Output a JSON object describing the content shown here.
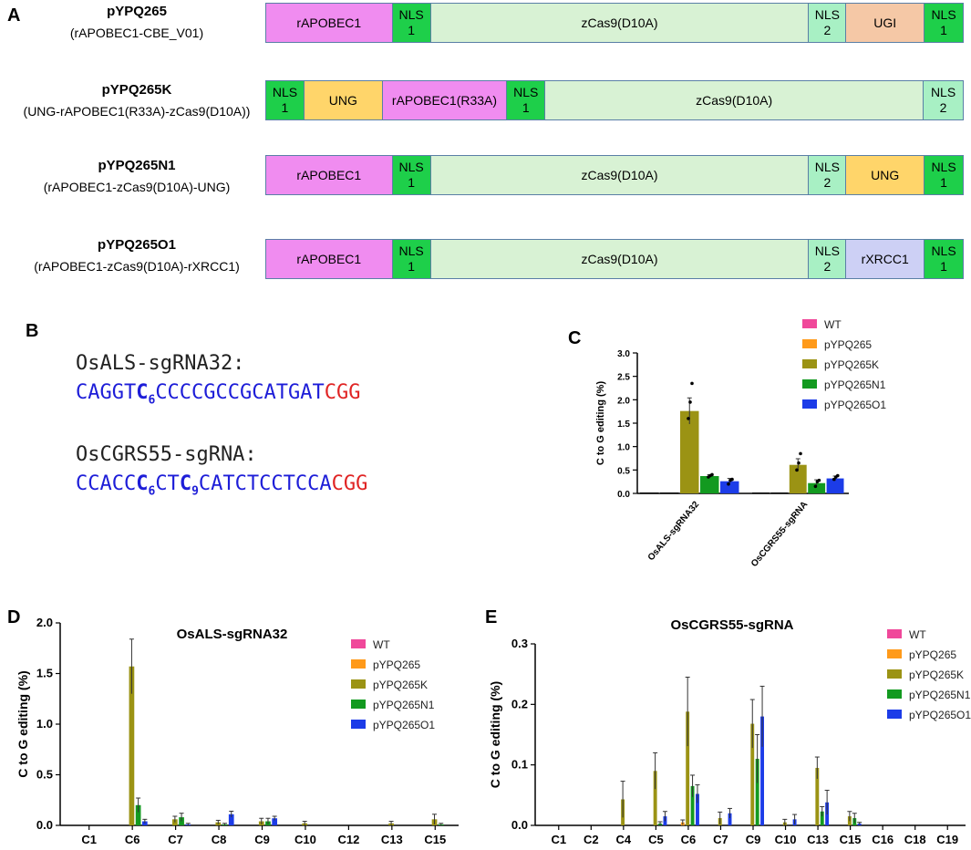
{
  "panels": {
    "a": "A",
    "b": "B",
    "c": "C",
    "d": "D",
    "e": "E"
  },
  "constructs": [
    {
      "name": "pYPQ265",
      "subtitle": "(rAPOBEC1-CBE_V01)",
      "segments": [
        {
          "label": "rAPOBEC1",
          "color": "#f08cf0"
        },
        {
          "label": "NLS\n1",
          "color": "#1ecf4a"
        },
        {
          "label": "zCas9(D10A)",
          "color": "#d8f2d4"
        },
        {
          "label": "NLS\n2",
          "color": "#a8f0c4"
        },
        {
          "label": "UGI",
          "color": "#f5c8a6"
        },
        {
          "label": "NLS\n1",
          "color": "#1ecf4a"
        }
      ]
    },
    {
      "name": "pYPQ265K",
      "subtitle": "(UNG-rAPOBEC1(R33A)-zCas9(D10A))",
      "segments": [
        {
          "label": "NLS\n1",
          "color": "#1ecf4a"
        },
        {
          "label": "UNG",
          "color": "#ffd56a"
        },
        {
          "label": "rAPOBEC1(R33A)",
          "color": "#f08cf0"
        },
        {
          "label": "NLS\n1",
          "color": "#1ecf4a"
        },
        {
          "label": "zCas9(D10A)",
          "color": "#d8f2d4"
        },
        {
          "label": "NLS\n2",
          "color": "#a8f0c4"
        }
      ]
    },
    {
      "name": "pYPQ265N1",
      "subtitle": "(rAPOBEC1-zCas9(D10A)-UNG)",
      "segments": [
        {
          "label": "rAPOBEC1",
          "color": "#f08cf0"
        },
        {
          "label": "NLS\n1",
          "color": "#1ecf4a"
        },
        {
          "label": "zCas9(D10A)",
          "color": "#d8f2d4"
        },
        {
          "label": "NLS\n2",
          "color": "#a8f0c4"
        },
        {
          "label": "UNG",
          "color": "#ffd56a"
        },
        {
          "label": "NLS\n1",
          "color": "#1ecf4a"
        }
      ]
    },
    {
      "name": "pYPQ265O1",
      "subtitle": "(rAPOBEC1-zCas9(D10A)-rXRCC1)",
      "segments": [
        {
          "label": "rAPOBEC1",
          "color": "#f08cf0"
        },
        {
          "label": "NLS\n1",
          "color": "#1ecf4a"
        },
        {
          "label": "zCas9(D10A)",
          "color": "#d8f2d4"
        },
        {
          "label": "NLS\n2",
          "color": "#a8f0c4"
        },
        {
          "label": "rXRCC1",
          "color": "#cdd0f5"
        },
        {
          "label": "NLS\n1",
          "color": "#1ecf4a"
        }
      ]
    }
  ],
  "sequences": [
    {
      "title": "OsALS-sgRNA32:",
      "parts": [
        {
          "text": "CAGGT",
          "style": "blue"
        },
        {
          "text": "C",
          "sub": "6",
          "style": "blue-bold"
        },
        {
          "text": "CCCCGCCGCATGAT",
          "style": "blue"
        },
        {
          "text": "CGG",
          "style": "red"
        }
      ]
    },
    {
      "title": "OsCGRS55-sgRNA:",
      "parts": [
        {
          "text": "CCACC",
          "style": "blue"
        },
        {
          "text": "C",
          "sub": "6",
          "style": "blue-bold"
        },
        {
          "text": "CT",
          "style": "blue"
        },
        {
          "text": "C",
          "sub": "9",
          "style": "blue-bold"
        },
        {
          "text": "CATCTCCTCCA",
          "style": "blue"
        },
        {
          "text": "CGG",
          "style": "red"
        }
      ]
    }
  ],
  "series_colors": {
    "WT": "#f0489a",
    "pYPQ265": "#ff9a1a",
    "pYPQ265K": "#9b9314",
    "pYPQ265N1": "#139a20",
    "pYPQ265O1": "#1c3ce8"
  },
  "chart_data": [
    {
      "id": "C",
      "type": "bar",
      "title": "",
      "ylabel": "C to G editing (%)",
      "ylim": [
        0,
        3.0
      ],
      "yticks": [
        0.0,
        0.5,
        1.0,
        1.5,
        2.0,
        2.5,
        3.0
      ],
      "ytick_labels": [
        "0.0",
        "0.5",
        "1.0",
        "1.5",
        "2.0",
        "2.5",
        "3.0"
      ],
      "categories": [
        "OsALS-sgRNA32",
        "OsCGRS55-sgRNA"
      ],
      "legend_position": "top-right",
      "series": [
        {
          "name": "WT",
          "values": [
            0,
            0
          ],
          "errors": [
            0,
            0
          ]
        },
        {
          "name": "pYPQ265",
          "values": [
            0,
            0
          ],
          "errors": [
            0,
            0
          ]
        },
        {
          "name": "pYPQ265K",
          "values": [
            1.76,
            0.61
          ],
          "errors": [
            0.28,
            0.13
          ]
        },
        {
          "name": "pYPQ265N1",
          "values": [
            0.37,
            0.22
          ],
          "errors": [
            0.03,
            0.07
          ]
        },
        {
          "name": "pYPQ265O1",
          "values": [
            0.26,
            0.32
          ],
          "errors": [
            0.06,
            0.05
          ]
        }
      ]
    },
    {
      "id": "D",
      "type": "bar",
      "title": "OsALS-sgRNA32",
      "ylabel": "C to G editing (%)",
      "ylim": [
        0,
        2.0
      ],
      "yticks": [
        0.0,
        0.5,
        1.0,
        1.5,
        2.0
      ],
      "ytick_labels": [
        "0.0",
        "0.5",
        "1.0",
        "1.5",
        "2.0"
      ],
      "categories": [
        "C1",
        "C6",
        "C7",
        "C8",
        "C9",
        "C10",
        "C12",
        "C13",
        "C15"
      ],
      "legend_position": "top-right",
      "series": [
        {
          "name": "WT",
          "values": [
            0,
            0,
            0,
            0,
            0,
            0,
            0,
            0,
            0
          ],
          "errors": [
            0,
            0,
            0,
            0,
            0,
            0,
            0,
            0,
            0
          ]
        },
        {
          "name": "pYPQ265",
          "values": [
            0,
            0,
            0,
            0,
            0,
            0,
            0,
            0,
            0
          ],
          "errors": [
            0,
            0,
            0,
            0,
            0,
            0,
            0,
            0,
            0
          ]
        },
        {
          "name": "pYPQ265K",
          "values": [
            0,
            1.57,
            0.06,
            0.03,
            0.04,
            0.02,
            0,
            0.02,
            0.06
          ],
          "errors": [
            0,
            0.27,
            0.03,
            0.02,
            0.03,
            0.02,
            0,
            0.02,
            0.05
          ]
        },
        {
          "name": "pYPQ265N1",
          "values": [
            0,
            0.2,
            0.08,
            0.01,
            0.04,
            0,
            0,
            0,
            0.01
          ],
          "errors": [
            0,
            0.07,
            0.04,
            0.01,
            0.03,
            0,
            0,
            0,
            0.01
          ]
        },
        {
          "name": "pYPQ265O1",
          "values": [
            0,
            0.04,
            0.01,
            0.11,
            0.07,
            0,
            0,
            0,
            0
          ],
          "errors": [
            0,
            0.02,
            0.01,
            0.03,
            0.02,
            0,
            0,
            0,
            0
          ]
        }
      ]
    },
    {
      "id": "E",
      "type": "bar",
      "title": "OsCGRS55-sgRNA",
      "ylabel": "C to G editing (%)",
      "ylim": [
        0,
        0.3
      ],
      "yticks": [
        0.0,
        0.1,
        0.2,
        0.3
      ],
      "ytick_labels": [
        "0.0",
        "0.1",
        "0.2",
        "0.3"
      ],
      "categories": [
        "C1",
        "C2",
        "C4",
        "C5",
        "C6",
        "C7",
        "C9",
        "C10",
        "C13",
        "C15",
        "C16",
        "C18",
        "C19"
      ],
      "legend_position": "top-right",
      "series": [
        {
          "name": "WT",
          "values": [
            0,
            0,
            0,
            0,
            0,
            0,
            0,
            0,
            0,
            0,
            0,
            0,
            0
          ],
          "errors": [
            0,
            0,
            0,
            0,
            0,
            0,
            0,
            0,
            0,
            0,
            0,
            0,
            0
          ]
        },
        {
          "name": "pYPQ265",
          "values": [
            0,
            0,
            0,
            0,
            0.005,
            0,
            0,
            0,
            0,
            0,
            0,
            0,
            0
          ],
          "errors": [
            0,
            0,
            0,
            0,
            0.004,
            0,
            0,
            0,
            0,
            0,
            0,
            0,
            0
          ]
        },
        {
          "name": "pYPQ265K",
          "values": [
            0,
            0,
            0.043,
            0.09,
            0.188,
            0.012,
            0.168,
            0.005,
            0.095,
            0.015,
            0,
            0,
            0
          ],
          "errors": [
            0,
            0,
            0.03,
            0.03,
            0.057,
            0.01,
            0.04,
            0.005,
            0.018,
            0.008,
            0,
            0,
            0
          ]
        },
        {
          "name": "pYPQ265N1",
          "values": [
            0,
            0,
            0,
            0.003,
            0.065,
            0,
            0.11,
            0,
            0.023,
            0.012,
            0,
            0,
            0
          ],
          "errors": [
            0,
            0,
            0,
            0.003,
            0.018,
            0,
            0.04,
            0,
            0.008,
            0.008,
            0,
            0,
            0
          ]
        },
        {
          "name": "pYPQ265O1",
          "values": [
            0,
            0,
            0,
            0.015,
            0.052,
            0.02,
            0.18,
            0.01,
            0.038,
            0.003,
            0,
            0,
            0
          ],
          "errors": [
            0,
            0,
            0,
            0.008,
            0.015,
            0.008,
            0.05,
            0.008,
            0.02,
            0.002,
            0,
            0,
            0
          ]
        }
      ]
    }
  ]
}
